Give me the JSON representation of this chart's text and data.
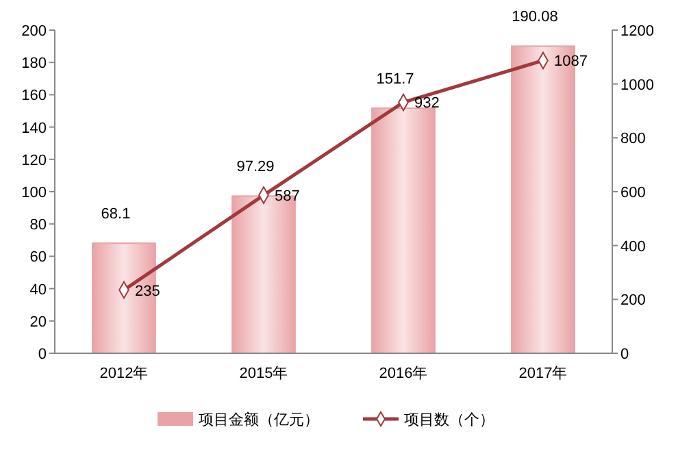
{
  "chart_data": {
    "type": "bar",
    "categories": [
      "2012年",
      "2015年",
      "2016年",
      "2017年"
    ],
    "series": [
      {
        "name": "项目金额（亿元）",
        "color": "#e8a3a6",
        "values": [
          68.1,
          97.29,
          151.7,
          190.08
        ]
      },
      {
        "name": "项目数（个）",
        "type": "line",
        "axis": "y2",
        "color": "#a2393c",
        "values": [
          235,
          587,
          932,
          1087
        ]
      }
    ],
    "ylim": [
      0,
      200
    ],
    "yticks": [
      0,
      20,
      40,
      60,
      80,
      100,
      120,
      140,
      160,
      180,
      200
    ],
    "y2lim": [
      0,
      1200
    ],
    "y2ticks": [
      0,
      200,
      400,
      600,
      800,
      1000,
      1200
    ],
    "data_labels": true,
    "legend": "bottom",
    "marker": "diamond",
    "grid": false
  }
}
